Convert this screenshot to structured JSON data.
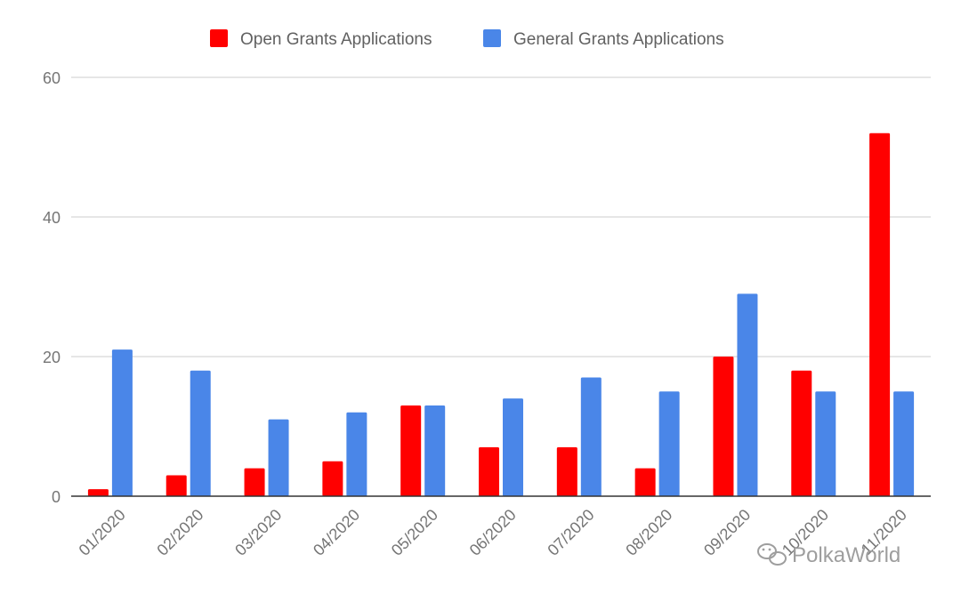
{
  "chart_data": {
    "type": "bar",
    "title": "",
    "xlabel": "",
    "ylabel": "",
    "categories": [
      "01/2020",
      "02/2020",
      "03/2020",
      "04/2020",
      "05/2020",
      "06/2020",
      "07/2020",
      "08/2020",
      "09/2020",
      "10/2020",
      "11/2020"
    ],
    "series": [
      {
        "name": "Open Grants Applications",
        "color": "#ff0000",
        "values": [
          1,
          3,
          4,
          5,
          13,
          7,
          7,
          4,
          20,
          18,
          52
        ]
      },
      {
        "name": "General Grants Applications",
        "color": "#4a86e8",
        "values": [
          21,
          18,
          11,
          12,
          13,
          14,
          17,
          15,
          29,
          15,
          15
        ]
      }
    ],
    "ylim": [
      0,
      60
    ],
    "yticks": [
      0,
      20,
      40,
      60
    ],
    "grid": true,
    "legend_position": "top-center",
    "xtick_rotation": -45
  },
  "watermark": {
    "text": "PolkaWorld",
    "icon": "wechat-icon"
  }
}
